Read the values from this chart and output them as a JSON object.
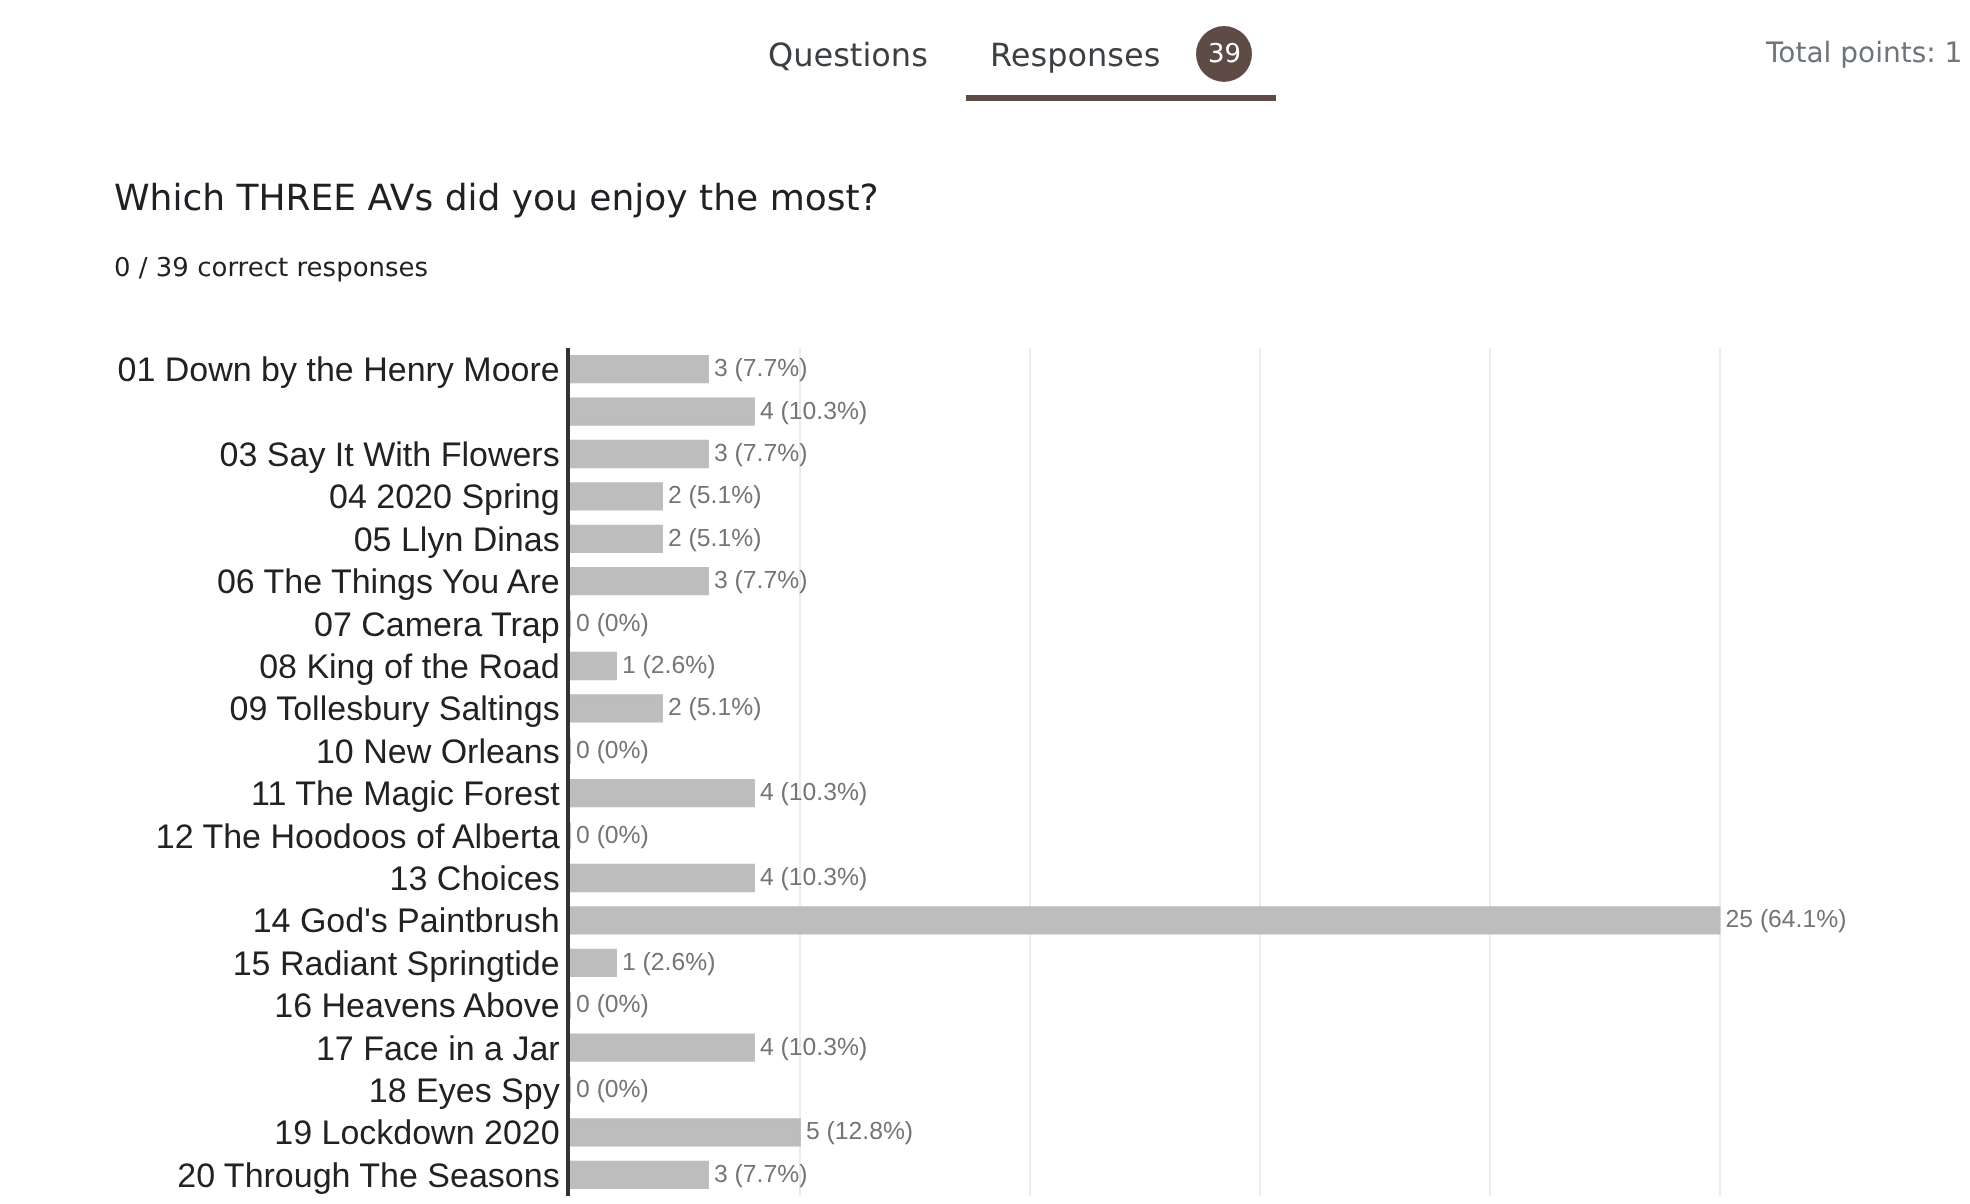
{
  "chart_data": {
    "type": "bar",
    "orientation": "horizontal",
    "title": "Which THREE AVs did you enjoy the most?",
    "subtitle": "0 / 39 correct responses",
    "annotations": [
      "Questions",
      "Responses",
      "39",
      "Total points: 1"
    ],
    "categories": [
      "01 Down by the Henry Moore",
      null,
      "03 Say It With Flowers",
      "04 2020 Spring",
      "05 Llyn Dinas",
      "06 The Things You Are",
      "07 Camera Trap",
      "08 King of the Road",
      "09 Tollesbury Saltings",
      "10 New Orleans",
      "11 The Magic Forest",
      "12 The Hoodoos of Alberta",
      "13 Choices",
      "14 God's Paintbrush",
      "15 Radiant Springtide",
      "16 Heavens Above",
      "17 Face in a Jar",
      "18 Eyes Spy",
      "19 Lockdown 2020",
      "20 Through The Seasons"
    ],
    "values": [
      3,
      4,
      3,
      2,
      2,
      3,
      0,
      1,
      2,
      0,
      4,
      0,
      4,
      25,
      1,
      0,
      4,
      0,
      5,
      3
    ],
    "value_labels": [
      "3 (7.7%)",
      "4 (10.3%)",
      "3 (7.7%)",
      "2 (5.1%)",
      "2 (5.1%)",
      "3 (7.7%)",
      "0 (0%)",
      "1 (2.6%)",
      "2 (5.1%)",
      "0 (0%)",
      "4 (10.3%)",
      "0 (0%)",
      "4 (10.3%)",
      "25 (64.1%)",
      "1 (2.6%)",
      "0 (0%)",
      "4 (10.3%)",
      "0 (0%)",
      "5 (12.8%)",
      "3 (7.7%)"
    ],
    "color": "#bdbdbd",
    "grid": "x",
    "tick_labels": "y",
    "legend": false
  }
}
